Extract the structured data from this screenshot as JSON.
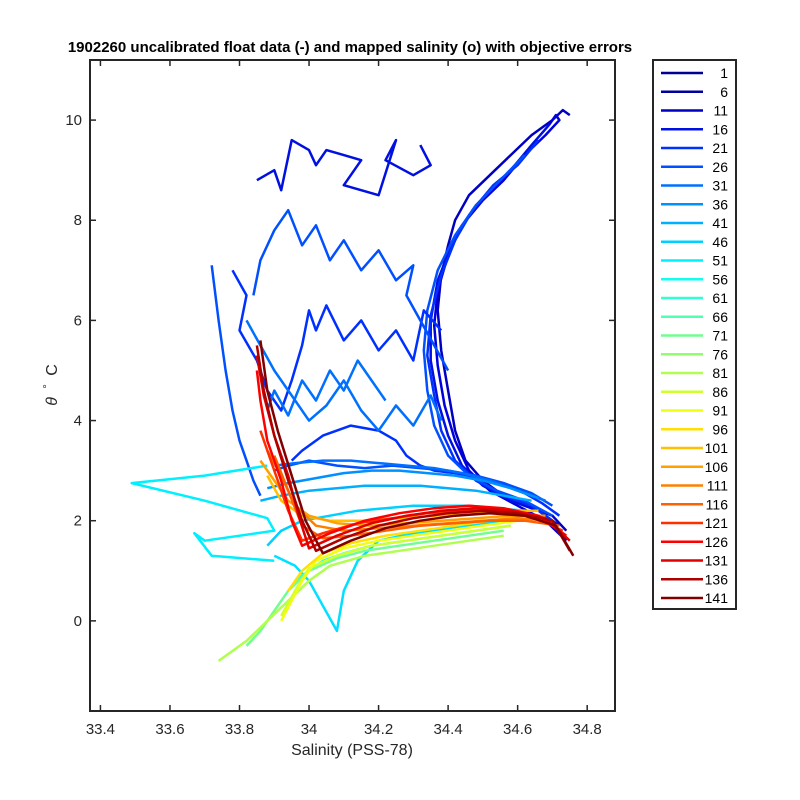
{
  "chart_data": {
    "type": "line",
    "title": "1902260 uncalibrated float data (-) and mapped salinity (o) with objective errors",
    "xlabel": "Salinity (PSS-78)",
    "ylabel_symbol": "θ",
    "ylabel_degree": "°",
    "ylabel_unit": "C",
    "xlim": [
      33.37,
      34.88
    ],
    "ylim": [
      -1.8,
      11.2
    ],
    "x_ticks": [
      33.4,
      33.6,
      33.8,
      34,
      34.2,
      34.4,
      34.6,
      34.8
    ],
    "x_tick_labels": [
      "33.4",
      "33.6",
      "33.8",
      "34",
      "34.2",
      "34.4",
      "34.6",
      "34.8"
    ],
    "y_ticks": [
      0,
      2,
      4,
      6,
      8,
      10
    ],
    "y_tick_labels": [
      "0",
      "2",
      "4",
      "6",
      "8",
      "10"
    ],
    "grid": false,
    "legend_placement": "outside-right",
    "legend": [
      {
        "label": "1",
        "color": "#00008f"
      },
      {
        "label": "6",
        "color": "#00009f"
      },
      {
        "label": "11",
        "color": "#0000c0"
      },
      {
        "label": "16",
        "color": "#0010e0"
      },
      {
        "label": "21",
        "color": "#0030ff"
      },
      {
        "label": "26",
        "color": "#0050ff"
      },
      {
        "label": "31",
        "color": "#0070ff"
      },
      {
        "label": "36",
        "color": "#0090ff"
      },
      {
        "label": "41",
        "color": "#00b0ff"
      },
      {
        "label": "46",
        "color": "#00d0ff"
      },
      {
        "label": "51",
        "color": "#00f0ff"
      },
      {
        "label": "56",
        "color": "#10ffef"
      },
      {
        "label": "61",
        "color": "#30ffcf"
      },
      {
        "label": "66",
        "color": "#50ffaf"
      },
      {
        "label": "71",
        "color": "#70ff8f"
      },
      {
        "label": "76",
        "color": "#90ff6f"
      },
      {
        "label": "81",
        "color": "#b0ff4f"
      },
      {
        "label": "86",
        "color": "#d0ff2f"
      },
      {
        "label": "91",
        "color": "#f0ff0f"
      },
      {
        "label": "96",
        "color": "#ffe000"
      },
      {
        "label": "101",
        "color": "#ffc000"
      },
      {
        "label": "106",
        "color": "#ffa000"
      },
      {
        "label": "111",
        "color": "#ff8000"
      },
      {
        "label": "116",
        "color": "#ff6000"
      },
      {
        "label": "121",
        "color": "#ff3000"
      },
      {
        "label": "126",
        "color": "#ff0000"
      },
      {
        "label": "131",
        "color": "#df0000"
      },
      {
        "label": "136",
        "color": "#af0000"
      },
      {
        "label": "141",
        "color": "#800000"
      }
    ],
    "series": [
      {
        "color": "#0000c0",
        "x": [
          34.74,
          34.7,
          34.62,
          34.56,
          34.5,
          34.45,
          34.42,
          34.4,
          34.38,
          34.37,
          34.38,
          34.4,
          34.42,
          34.46,
          34.52,
          34.58,
          34.64,
          34.7,
          34.73,
          34.75
        ],
        "y": [
          1.8,
          2.1,
          2.3,
          2.5,
          2.8,
          3.2,
          3.8,
          4.6,
          5.4,
          6.2,
          6.9,
          7.5,
          8.0,
          8.5,
          8.9,
          9.3,
          9.7,
          10.0,
          10.2,
          10.1
        ]
      },
      {
        "color": "#0000df",
        "x": [
          34.74,
          34.68,
          34.6,
          34.52,
          34.46,
          34.42,
          34.39,
          34.37,
          34.36,
          34.37,
          34.4,
          34.44,
          34.5,
          34.56,
          34.62,
          34.68,
          34.72,
          34.71,
          34.69
        ],
        "y": [
          1.6,
          2.0,
          2.3,
          2.6,
          3.0,
          3.6,
          4.3,
          5.1,
          5.9,
          6.6,
          7.3,
          7.9,
          8.4,
          8.8,
          9.3,
          9.7,
          10.0,
          10.1,
          9.9
        ]
      },
      {
        "color": "#0010e0",
        "x": [
          34.72,
          34.66,
          34.58,
          34.5,
          34.44,
          34.4,
          34.37,
          34.35,
          34.35,
          34.37,
          34.41,
          34.46,
          34.52,
          34.58,
          34.64,
          34.69
        ],
        "y": [
          1.9,
          2.2,
          2.4,
          2.7,
          3.1,
          3.7,
          4.4,
          5.2,
          6.0,
          6.8,
          7.5,
          8.1,
          8.6,
          9.0,
          9.5,
          9.9
        ]
      },
      {
        "color": "#0030ff",
        "x": [
          34.7,
          34.64,
          34.56,
          34.48,
          34.42,
          34.38,
          34.36,
          34.34,
          34.35,
          34.38,
          34.42,
          34.47,
          34.53,
          34.6,
          34.66
        ],
        "y": [
          2.0,
          2.3,
          2.5,
          2.8,
          3.2,
          3.8,
          4.5,
          5.3,
          6.1,
          6.9,
          7.6,
          8.2,
          8.7,
          9.1,
          9.6
        ]
      },
      {
        "color": "#0050ff",
        "x": [
          34.7,
          34.62,
          34.54,
          34.46,
          34.4,
          34.36,
          34.34,
          34.33,
          34.34,
          34.37,
          34.42,
          34.48,
          34.55,
          34.62
        ],
        "y": [
          2.1,
          2.4,
          2.6,
          2.9,
          3.3,
          3.9,
          4.6,
          5.4,
          6.2,
          7.0,
          7.7,
          8.3,
          8.8,
          9.3
        ]
      },
      {
        "color": "#0030ff",
        "x": [
          34.72,
          34.67,
          34.62,
          34.57,
          34.5,
          34.42,
          34.36,
          34.32,
          34.28,
          34.25,
          34.2,
          34.12,
          34.04,
          33.98,
          33.95
        ],
        "y": [
          2.1,
          2.35,
          2.55,
          2.7,
          2.85,
          2.95,
          3.0,
          3.1,
          3.3,
          3.6,
          3.8,
          3.9,
          3.7,
          3.4,
          3.2
        ]
      },
      {
        "color": "#0050ff",
        "x": [
          34.7,
          34.64,
          34.56,
          34.48,
          34.4,
          34.32,
          34.24,
          34.16,
          34.08,
          34.0,
          33.94,
          33.9
        ],
        "y": [
          2.3,
          2.55,
          2.75,
          2.9,
          3.0,
          3.05,
          3.1,
          3.05,
          3.1,
          3.2,
          3.1,
          3.0
        ]
      },
      {
        "color": "#0070ff",
        "x": [
          34.68,
          34.6,
          34.52,
          34.44,
          34.36,
          34.28,
          34.2,
          34.12,
          34.04,
          33.96,
          33.9
        ],
        "y": [
          2.4,
          2.6,
          2.8,
          2.95,
          3.05,
          3.1,
          3.15,
          3.2,
          3.2,
          3.15,
          3.1
        ]
      },
      {
        "color": "#0010e0",
        "x": [
          33.85,
          33.9,
          33.92,
          33.95,
          34.0,
          34.02,
          34.05,
          34.1,
          34.15,
          34.1,
          34.2,
          34.25,
          34.22,
          34.3,
          34.35,
          34.32
        ],
        "y": [
          8.8,
          9.0,
          8.6,
          9.6,
          9.4,
          9.1,
          9.4,
          9.3,
          9.2,
          8.7,
          8.5,
          9.6,
          9.2,
          8.9,
          9.1,
          9.5
        ]
      },
      {
        "color": "#0030ff",
        "x": [
          33.78,
          33.82,
          33.8,
          33.85,
          33.88,
          33.92,
          33.95,
          33.98,
          34.0,
          34.02,
          34.05,
          34.1,
          34.15,
          34.2,
          34.25,
          34.3,
          34.33,
          34.38
        ],
        "y": [
          7.0,
          6.5,
          5.8,
          5.2,
          4.6,
          4.2,
          4.8,
          5.5,
          6.2,
          5.8,
          6.3,
          5.6,
          6.0,
          5.4,
          5.8,
          5.2,
          6.2,
          5.8
        ]
      },
      {
        "color": "#0050ff",
        "x": [
          33.84,
          33.86,
          33.9,
          33.94,
          33.98,
          34.02,
          34.06,
          34.1,
          34.15,
          34.2,
          34.25,
          34.3,
          34.28,
          34.32,
          34.36,
          34.4
        ],
        "y": [
          6.5,
          7.2,
          7.8,
          8.2,
          7.5,
          7.9,
          7.2,
          7.6,
          7.0,
          7.4,
          6.8,
          7.1,
          6.5,
          6.0,
          5.5,
          5.0
        ]
      },
      {
        "color": "#0070ff",
        "x": [
          33.82,
          33.86,
          33.9,
          33.95,
          34.0,
          34.05,
          34.1,
          34.15,
          34.2,
          34.25,
          34.3,
          34.35,
          34.38
        ],
        "y": [
          6.0,
          5.5,
          5.0,
          4.5,
          4.0,
          4.3,
          4.8,
          4.2,
          3.8,
          4.3,
          3.9,
          4.5,
          4.0
        ]
      },
      {
        "color": "#0050ff",
        "x": [
          33.72,
          33.74,
          33.76,
          33.78,
          33.8,
          33.82,
          33.84,
          33.86
        ],
        "y": [
          7.1,
          6.0,
          5.0,
          4.2,
          3.6,
          3.2,
          2.8,
          2.5
        ]
      },
      {
        "color": "#0070ff",
        "x": [
          33.88,
          33.9,
          33.94,
          33.98,
          34.02,
          34.06,
          34.1,
          34.14,
          34.18,
          34.22
        ],
        "y": [
          4.2,
          4.6,
          4.1,
          4.8,
          4.4,
          5.0,
          4.6,
          5.2,
          4.8,
          4.4
        ]
      },
      {
        "color": "#0090ff",
        "x": [
          34.66,
          34.58,
          34.5,
          34.42,
          34.34,
          34.26,
          34.18,
          34.1,
          34.02,
          33.94,
          33.88
        ],
        "y": [
          2.45,
          2.65,
          2.8,
          2.9,
          2.95,
          3.0,
          3.0,
          2.95,
          2.85,
          2.75,
          2.65
        ]
      },
      {
        "color": "#00b0ff",
        "x": [
          34.64,
          34.56,
          34.48,
          34.4,
          34.32,
          34.24,
          34.16,
          34.08,
          34.0,
          33.92,
          33.86
        ],
        "y": [
          2.4,
          2.5,
          2.6,
          2.65,
          2.7,
          2.7,
          2.7,
          2.65,
          2.6,
          2.5,
          2.4
        ]
      },
      {
        "color": "#00d0ff",
        "x": [
          34.62,
          34.54,
          34.46,
          34.38,
          34.3,
          34.22,
          34.14,
          34.06,
          33.98,
          33.92,
          33.88
        ],
        "y": [
          2.2,
          2.25,
          2.3,
          2.3,
          2.3,
          2.25,
          2.2,
          2.1,
          2.0,
          1.8,
          1.5
        ]
      },
      {
        "color": "#00f0ff",
        "x": [
          33.88,
          33.7,
          33.49,
          33.7,
          33.88,
          33.9,
          33.7,
          33.67,
          33.72,
          33.9
        ],
        "y": [
          3.1,
          2.9,
          2.75,
          2.4,
          2.05,
          1.8,
          1.6,
          1.75,
          1.3,
          1.2
        ]
      },
      {
        "color": "#00e0ff",
        "x": [
          34.6,
          34.5,
          34.4,
          34.3,
          34.2,
          34.14,
          34.1,
          34.08,
          34.04,
          34.0,
          33.96,
          33.9
        ],
        "y": [
          2.0,
          1.95,
          1.85,
          1.75,
          1.6,
          1.2,
          0.6,
          -0.2,
          0.3,
          0.8,
          1.1,
          1.3
        ]
      },
      {
        "color": "#30ffcf",
        "x": [
          34.58,
          34.48,
          34.38,
          34.28,
          34.18,
          34.1,
          34.04,
          34.0,
          33.96
        ],
        "y": [
          1.9,
          1.8,
          1.7,
          1.6,
          1.5,
          1.35,
          1.2,
          1.0,
          0.8
        ]
      },
      {
        "color": "#70ff8f",
        "x": [
          34.56,
          34.46,
          34.36,
          34.26,
          34.16,
          34.08,
          34.0,
          33.94,
          33.9,
          33.86,
          33.82
        ],
        "y": [
          1.8,
          1.7,
          1.6,
          1.5,
          1.4,
          1.25,
          1.0,
          0.6,
          0.2,
          -0.2,
          -0.5
        ]
      },
      {
        "color": "#b0ff4f",
        "x": [
          34.56,
          34.46,
          34.36,
          34.26,
          34.16,
          34.06,
          34.0,
          33.94,
          33.88,
          33.82,
          33.74
        ],
        "y": [
          1.7,
          1.6,
          1.5,
          1.4,
          1.3,
          1.1,
          0.8,
          0.4,
          0.0,
          -0.4,
          -0.8
        ]
      },
      {
        "color": "#d0ff2f",
        "x": [
          34.58,
          34.48,
          34.38,
          34.28,
          34.18,
          34.08,
          34.0,
          33.96,
          33.92
        ],
        "y": [
          1.9,
          1.8,
          1.7,
          1.6,
          1.5,
          1.3,
          1.05,
          0.6,
          0.1
        ]
      },
      {
        "color": "#f0ff0f",
        "x": [
          34.6,
          34.5,
          34.4,
          34.3,
          34.2,
          34.1,
          34.02,
          33.98,
          33.95,
          33.92
        ],
        "y": [
          2.0,
          1.9,
          1.8,
          1.7,
          1.6,
          1.45,
          1.2,
          0.8,
          0.4,
          0.0
        ]
      },
      {
        "color": "#ffe000",
        "x": [
          34.62,
          34.52,
          34.42,
          34.32,
          34.22,
          34.12,
          34.04,
          33.98,
          33.94
        ],
        "y": [
          2.1,
          2.0,
          1.9,
          1.8,
          1.7,
          1.55,
          1.35,
          1.0,
          0.6
        ]
      },
      {
        "color": "#ffc000",
        "x": [
          34.66,
          34.56,
          34.46,
          34.36,
          34.26,
          34.16,
          34.06,
          33.98,
          33.92,
          33.88
        ],
        "y": [
          2.2,
          2.2,
          2.15,
          2.1,
          2.05,
          2.0,
          2.0,
          2.1,
          2.4,
          2.9
        ]
      },
      {
        "color": "#ffa000",
        "x": [
          34.68,
          34.58,
          34.48,
          34.38,
          34.28,
          34.18,
          34.08,
          34.0,
          33.94,
          33.9,
          33.86
        ],
        "y": [
          2.1,
          2.1,
          2.05,
          2.0,
          1.95,
          1.9,
          1.95,
          2.1,
          2.4,
          2.8,
          3.2
        ]
      },
      {
        "color": "#ff8000",
        "x": [
          34.7,
          34.6,
          34.5,
          34.4,
          34.3,
          34.2,
          34.1,
          34.02,
          33.96,
          33.92,
          33.88
        ],
        "y": [
          2.0,
          2.05,
          2.0,
          1.95,
          1.9,
          1.85,
          1.8,
          1.9,
          2.3,
          2.9,
          3.4
        ]
      },
      {
        "color": "#ff6000",
        "x": [
          34.72,
          34.62,
          34.52,
          34.42,
          34.32,
          34.22,
          34.12,
          34.04,
          33.98,
          33.94,
          33.9
        ],
        "y": [
          1.9,
          2.0,
          2.0,
          1.95,
          1.9,
          1.8,
          1.7,
          1.65,
          1.9,
          2.6,
          3.3
        ]
      },
      {
        "color": "#ff3000",
        "x": [
          34.73,
          34.64,
          34.54,
          34.44,
          34.34,
          34.24,
          34.14,
          34.04,
          33.98,
          33.94,
          33.9,
          33.86
        ],
        "y": [
          1.8,
          2.1,
          2.2,
          2.2,
          2.15,
          2.05,
          1.95,
          1.75,
          1.6,
          2.2,
          3.0,
          3.8
        ]
      },
      {
        "color": "#ff0000",
        "x": [
          34.74,
          34.66,
          34.56,
          34.46,
          34.36,
          34.26,
          34.16,
          34.06,
          33.98,
          33.95,
          33.92,
          33.88,
          33.86,
          33.85
        ],
        "y": [
          1.7,
          2.1,
          2.25,
          2.3,
          2.25,
          2.15,
          2.0,
          1.75,
          1.5,
          2.0,
          2.8,
          3.6,
          4.4,
          5.0
        ]
      },
      {
        "color": "#df0000",
        "x": [
          34.75,
          34.68,
          34.58,
          34.48,
          34.38,
          34.28,
          34.18,
          34.08,
          34.0,
          33.97,
          33.94,
          33.9,
          33.87,
          33.85
        ],
        "y": [
          1.6,
          2.05,
          2.2,
          2.25,
          2.2,
          2.1,
          1.95,
          1.7,
          1.45,
          2.1,
          2.9,
          3.7,
          4.5,
          5.3
        ]
      },
      {
        "color": "#af0000",
        "x": [
          34.75,
          34.7,
          34.6,
          34.5,
          34.4,
          34.3,
          34.2,
          34.1,
          34.02,
          33.98,
          33.94,
          33.9,
          33.87,
          33.85
        ],
        "y": [
          1.4,
          2.0,
          2.15,
          2.2,
          2.15,
          2.05,
          1.9,
          1.65,
          1.4,
          2.0,
          2.8,
          3.7,
          4.6,
          5.5
        ]
      },
      {
        "color": "#800000",
        "x": [
          34.76,
          34.71,
          34.62,
          34.52,
          34.42,
          34.32,
          34.22,
          34.12,
          34.04,
          33.99,
          33.95,
          33.91,
          33.88,
          33.86
        ],
        "y": [
          1.3,
          1.9,
          2.1,
          2.15,
          2.1,
          2.0,
          1.85,
          1.6,
          1.35,
          2.0,
          2.9,
          3.8,
          4.6,
          5.6
        ]
      }
    ]
  }
}
